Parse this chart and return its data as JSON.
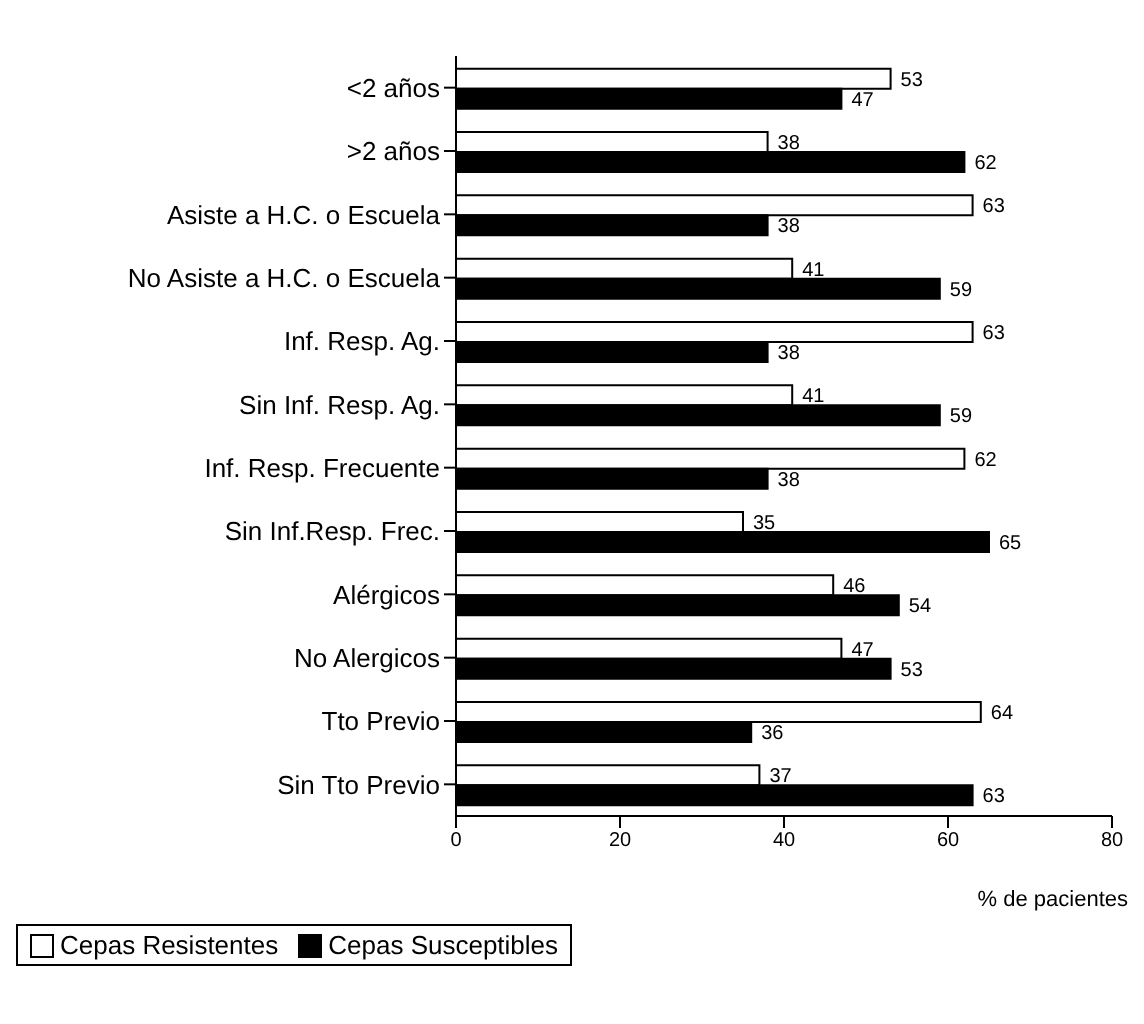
{
  "chart_data": {
    "type": "bar",
    "orientation": "horizontal",
    "xlabel": "% de pacientes",
    "categories": [
      "<2 años",
      ">2 años",
      "Asiste a H.C. o Escuela",
      "No Asiste a H.C. o Escuela",
      "Inf. Resp. Ag.",
      "Sin Inf. Resp. Ag.",
      "Inf. Resp. Frecuente",
      "Sin Inf.Resp. Frec.",
      "Alérgicos",
      "No Alergicos",
      "Tto Previo",
      "Sin Tto Previo"
    ],
    "series": [
      {
        "name": "Cepas Resistentes",
        "color": "#ffffff",
        "values": [
          53,
          38,
          63,
          41,
          63,
          41,
          62,
          35,
          46,
          47,
          64,
          37
        ]
      },
      {
        "name": "Cepas Susceptibles",
        "color": "#000000",
        "values": [
          47,
          62,
          38,
          59,
          38,
          59,
          38,
          65,
          54,
          53,
          36,
          63
        ]
      }
    ],
    "xlim": [
      0,
      80
    ],
    "xticks": [
      0,
      20,
      40,
      60,
      80
    ],
    "data_labels": true,
    "grid": false,
    "legend": "bottom left"
  }
}
